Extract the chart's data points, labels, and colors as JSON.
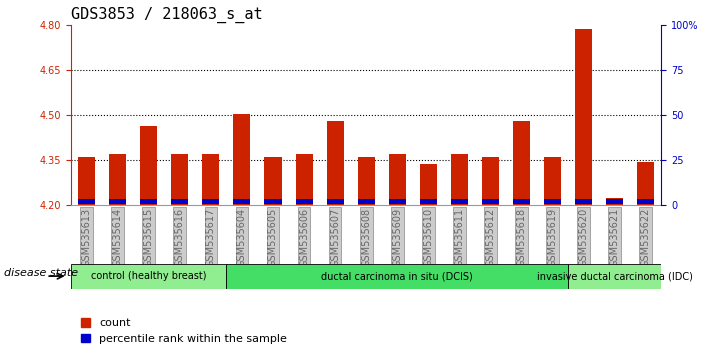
{
  "title": "GDS3853 / 218063_s_at",
  "samples": [
    "GSM535613",
    "GSM535614",
    "GSM535615",
    "GSM535616",
    "GSM535617",
    "GSM535604",
    "GSM535605",
    "GSM535606",
    "GSM535607",
    "GSM535608",
    "GSM535609",
    "GSM535610",
    "GSM535611",
    "GSM535612",
    "GSM535618",
    "GSM535619",
    "GSM535620",
    "GSM535621",
    "GSM535622"
  ],
  "red_values": [
    4.36,
    4.37,
    4.465,
    4.37,
    4.37,
    4.505,
    4.36,
    4.37,
    4.48,
    4.36,
    4.37,
    4.338,
    4.37,
    4.36,
    4.48,
    4.36,
    4.785,
    4.225,
    4.345
  ],
  "blue_heights": [
    0.018,
    0.018,
    0.018,
    0.018,
    0.018,
    0.018,
    0.018,
    0.018,
    0.018,
    0.018,
    0.018,
    0.018,
    0.018,
    0.018,
    0.018,
    0.018,
    0.018,
    0.018,
    0.018
  ],
  "base_value": 4.2,
  "ylim_left": [
    4.2,
    4.8
  ],
  "ylim_right": [
    0,
    100
  ],
  "yticks_left": [
    4.2,
    4.35,
    4.5,
    4.65,
    4.8
  ],
  "yticks_right": [
    0,
    25,
    50,
    75,
    100
  ],
  "hlines": [
    4.35,
    4.5,
    4.65
  ],
  "groups": [
    {
      "label": "control (healthy breast)",
      "start": 0,
      "end": 5,
      "color": "#90EE90"
    },
    {
      "label": "ductal carcinoma in situ (DCIS)",
      "start": 5,
      "end": 16,
      "color": "#44DD66"
    },
    {
      "label": "invasive ductal carcinoma (IDC)",
      "start": 16,
      "end": 19,
      "color": "#90EE90"
    }
  ],
  "disease_state_label": "disease state",
  "legend_red": "count",
  "legend_blue": "percentile rank within the sample",
  "bar_color_red": "#CC2200",
  "bar_color_blue": "#0000CC",
  "bar_width": 0.55,
  "tick_label_color": "#666666",
  "left_axis_color": "#CC2200",
  "right_axis_color": "#0000CC",
  "title_fontsize": 11,
  "tick_fontsize": 7,
  "label_fontsize": 8
}
